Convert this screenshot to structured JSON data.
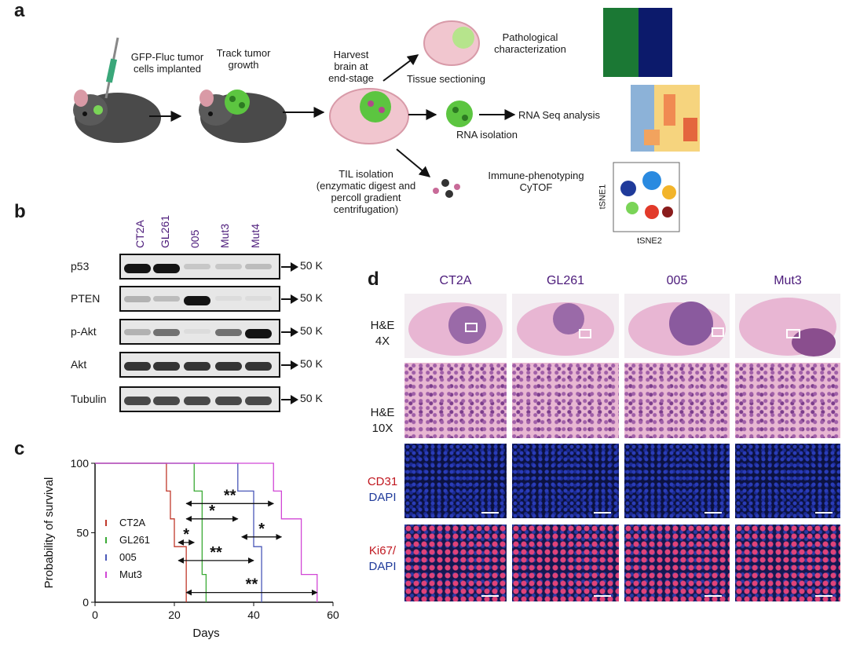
{
  "panels": {
    "a": "a",
    "b": "b",
    "c": "c",
    "d": "d"
  },
  "panel_a": {
    "step1": "GFP-Fluc tumor\ncells implanted",
    "step2": "Track tumor\ngrowth",
    "step3": "Harvest\nbrain at\nend-stage",
    "tissue_sectioning": "Tissue sectioning",
    "pathological": "Pathological\ncharacterization",
    "rna_isolation": "RNA isolation",
    "rna_seq": "RNA Seq analysis",
    "til_isolation": "TIL isolation\n(enzymatic digest and\npercoll gradient\ncentrifugation)",
    "immune": "Immune-phenotyping\nCyTOF",
    "tsne1": "tSNE1",
    "tsne2": "tSNE2"
  },
  "panel_b": {
    "cell_lines": [
      "CT2A",
      "GL261",
      "005",
      "Mut3",
      "Mut4"
    ],
    "rows": [
      {
        "label": "p53",
        "kd": "50 K",
        "intensity": [
          1.0,
          1.0,
          0.15,
          0.15,
          0.2
        ]
      },
      {
        "label": "PTEN",
        "kd": "50 K",
        "intensity": [
          0.25,
          0.2,
          1.0,
          0.05,
          0.05
        ]
      },
      {
        "label": "p-Akt",
        "kd": "50 K",
        "intensity": [
          0.25,
          0.55,
          0.05,
          0.55,
          1.0
        ]
      },
      {
        "label": "Akt",
        "kd": "50 K",
        "intensity": [
          0.85,
          0.85,
          0.85,
          0.85,
          0.85
        ]
      },
      {
        "label": "Tubulin",
        "kd": "50 K",
        "intensity": [
          0.75,
          0.75,
          0.75,
          0.75,
          0.75
        ]
      }
    ]
  },
  "chart_data": {
    "type": "line",
    "xlabel": "Days",
    "ylabel": "Probability of survival",
    "xlim": [
      0,
      60
    ],
    "ylim": [
      0,
      100
    ],
    "xticks": [
      "0",
      "20",
      "40",
      "60"
    ],
    "yticks": [
      "0",
      "50",
      "100"
    ],
    "series": [
      {
        "name": "CT2A",
        "color": "#c0392b",
        "x": [
          0,
          17,
          18,
          19,
          20,
          23
        ],
        "y": [
          100,
          100,
          80,
          60,
          40,
          0
        ]
      },
      {
        "name": "GL261",
        "color": "#3aaa35",
        "x": [
          0,
          23,
          25,
          27,
          28
        ],
        "y": [
          100,
          100,
          80,
          20,
          0
        ]
      },
      {
        "name": "005",
        "color": "#4a58b8",
        "x": [
          0,
          28,
          36,
          40,
          42
        ],
        "y": [
          100,
          100,
          80,
          40,
          0
        ]
      },
      {
        "name": "Mut3",
        "color": "#d147d6",
        "x": [
          0,
          36,
          45,
          47,
          52,
          56
        ],
        "y": [
          100,
          100,
          80,
          60,
          20,
          0
        ]
      }
    ],
    "annotations": [
      "**",
      "*",
      "*",
      "*",
      "**",
      "**"
    ]
  },
  "panel_d": {
    "columns": [
      "CT2A",
      "GL261",
      "005",
      "Mut3"
    ],
    "row_he4": "H&E\n4X",
    "row_he10": "H&E\n10X",
    "row_cd31_a": "CD31",
    "row_cd31_b": "DAPI",
    "row_ki67_a": "Ki67/",
    "row_ki67_b": "DAPI"
  },
  "colors": {
    "purple": "#4b1a7a",
    "red": "#c0171f",
    "blue": "#1f3a9a"
  }
}
